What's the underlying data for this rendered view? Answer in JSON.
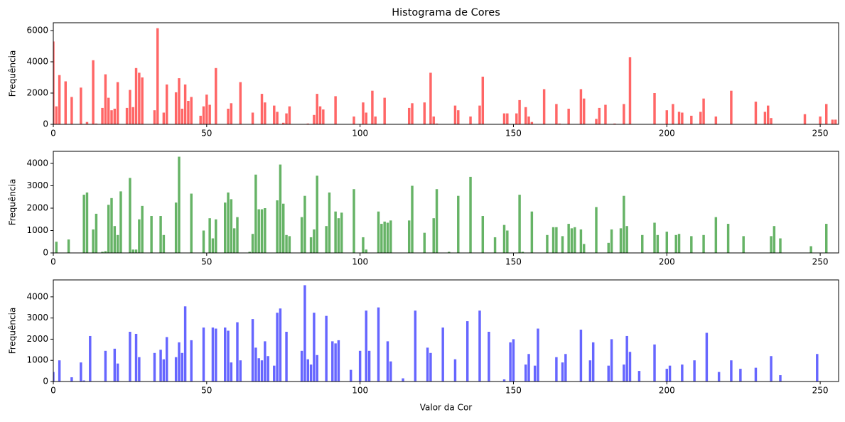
{
  "chart_data": [
    {
      "type": "bar",
      "title": "Histograma de Cores",
      "ylabel": "Frequência",
      "color": "#ff6666",
      "xlim": [
        0,
        256
      ],
      "xticks": [
        0,
        50,
        100,
        150,
        200,
        250
      ],
      "ylim": [
        0,
        6500
      ],
      "yticks": [
        0,
        2000,
        4000,
        6000
      ],
      "x": [
        0,
        1,
        2,
        4,
        6,
        9,
        11,
        13,
        14,
        16,
        17,
        18,
        19,
        20,
        21,
        24,
        25,
        26,
        27,
        28,
        29,
        33,
        34,
        36,
        37,
        40,
        41,
        42,
        43,
        44,
        45,
        48,
        49,
        50,
        51,
        53,
        57,
        58,
        61,
        65,
        68,
        69,
        72,
        73,
        75,
        76,
        77,
        83,
        85,
        86,
        87,
        88,
        92,
        98,
        101,
        102,
        104,
        105,
        108,
        116,
        117,
        121,
        123,
        124,
        125,
        131,
        132,
        136,
        139,
        140,
        147,
        148,
        151,
        152,
        154,
        155,
        156,
        160,
        164,
        165,
        168,
        172,
        173,
        177,
        178,
        180,
        183,
        186,
        188,
        196,
        200,
        202,
        204,
        205,
        208,
        211,
        212,
        216,
        221,
        229,
        232,
        233,
        234,
        245,
        250,
        252,
        254,
        255
      ],
      "values": [
        5300,
        1150,
        3150,
        2750,
        1750,
        2350,
        150,
        4100,
        50,
        1050,
        3200,
        1700,
        900,
        1000,
        2700,
        1050,
        2200,
        1100,
        3600,
        3300,
        3000,
        900,
        6150,
        750,
        2550,
        2050,
        2950,
        1000,
        2550,
        1500,
        1750,
        550,
        1150,
        1900,
        1250,
        3600,
        1000,
        1350,
        2700,
        750,
        1950,
        1400,
        1200,
        800,
        100,
        700,
        1150,
        50,
        600,
        1950,
        1150,
        950,
        1800,
        500,
        1400,
        750,
        2150,
        500,
        1700,
        1050,
        1350,
        1400,
        3300,
        500,
        50,
        1200,
        900,
        500,
        1200,
        3050,
        700,
        700,
        700,
        1550,
        1100,
        500,
        150,
        2250,
        1300,
        50,
        1000,
        2250,
        1650,
        350,
        1050,
        1250,
        50,
        1300,
        4300,
        2000,
        900,
        1300,
        800,
        750,
        550,
        800,
        1650,
        500,
        2150,
        1450,
        800,
        1200,
        400,
        650,
        500,
        1300,
        300,
        300
      ]
    },
    {
      "type": "bar",
      "ylabel": "Frequência",
      "color": "#66b366",
      "xlim": [
        0,
        256
      ],
      "xticks": [
        0,
        50,
        100,
        150,
        200,
        250
      ],
      "ylim": [
        0,
        4540
      ],
      "yticks": [
        0,
        1000,
        2000,
        3000,
        4000
      ],
      "x": [
        1,
        5,
        10,
        11,
        13,
        14,
        16,
        17,
        18,
        19,
        20,
        21,
        22,
        25,
        26,
        27,
        28,
        29,
        32,
        35,
        36,
        40,
        41,
        45,
        49,
        51,
        52,
        53,
        56,
        57,
        58,
        59,
        60,
        64,
        65,
        66,
        67,
        68,
        69,
        73,
        74,
        75,
        76,
        77,
        81,
        82,
        84,
        85,
        86,
        89,
        90,
        92,
        93,
        94,
        98,
        101,
        102,
        106,
        107,
        108,
        109,
        110,
        116,
        117,
        121,
        124,
        125,
        129,
        132,
        136,
        140,
        144,
        147,
        148,
        152,
        153,
        156,
        161,
        163,
        164,
        166,
        168,
        169,
        170,
        172,
        173,
        177,
        181,
        182,
        185,
        186,
        187,
        192,
        196,
        197,
        200,
        203,
        204,
        208,
        212,
        216,
        220,
        225,
        234,
        235,
        237,
        247,
        252
      ],
      "values": [
        500,
        600,
        2600,
        2700,
        1050,
        1750,
        50,
        80,
        2150,
        2450,
        1200,
        800,
        2750,
        3350,
        150,
        150,
        1500,
        2100,
        1650,
        1650,
        800,
        2250,
        4300,
        2650,
        1000,
        1550,
        650,
        1500,
        2250,
        2700,
        2400,
        1100,
        1600,
        50,
        850,
        3500,
        1950,
        1950,
        2000,
        2350,
        3950,
        2200,
        800,
        750,
        1600,
        2550,
        700,
        1050,
        3450,
        1200,
        2700,
        1850,
        1550,
        1800,
        2850,
        700,
        150,
        1850,
        1300,
        1400,
        1350,
        1450,
        1450,
        3000,
        900,
        1550,
        2850,
        50,
        2550,
        3400,
        1650,
        700,
        1250,
        1000,
        2600,
        50,
        1850,
        800,
        1150,
        1150,
        750,
        1300,
        1100,
        1150,
        1050,
        400,
        2050,
        450,
        1050,
        1100,
        2550,
        1200,
        800,
        1350,
        800,
        950,
        800,
        850,
        750,
        800,
        1600,
        1300,
        750,
        750,
        1200,
        650,
        300,
        1300
      ]
    },
    {
      "type": "bar",
      "ylabel": "Frequência",
      "xlabel": "Valor da Cor",
      "color": "#6666ff",
      "xlim": [
        0,
        256
      ],
      "xticks": [
        0,
        50,
        100,
        150,
        200,
        250
      ],
      "ylim": [
        0,
        4800
      ],
      "yticks": [
        0,
        1000,
        2000,
        3000,
        4000
      ],
      "x": [
        0,
        2,
        6,
        9,
        10,
        12,
        17,
        20,
        21,
        25,
        27,
        28,
        33,
        35,
        36,
        37,
        40,
        41,
        42,
        43,
        45,
        49,
        52,
        53,
        56,
        57,
        58,
        60,
        61,
        65,
        66,
        67,
        68,
        69,
        70,
        72,
        73,
        74,
        76,
        81,
        82,
        83,
        84,
        85,
        86,
        89,
        91,
        92,
        93,
        97,
        100,
        102,
        103,
        106,
        109,
        110,
        114,
        118,
        122,
        123,
        127,
        131,
        135,
        139,
        142,
        147,
        149,
        150,
        154,
        155,
        157,
        158,
        164,
        166,
        167,
        172,
        175,
        176,
        181,
        182,
        186,
        187,
        188,
        191,
        196,
        200,
        201,
        205,
        209,
        213,
        217,
        221,
        224,
        229,
        234,
        237,
        249
      ],
      "values": [
        450,
        1000,
        200,
        900,
        50,
        2150,
        1450,
        1550,
        850,
        2350,
        2250,
        1150,
        1350,
        1500,
        1050,
        2100,
        1150,
        1850,
        1350,
        3550,
        1950,
        2550,
        2550,
        2500,
        2550,
        2400,
        900,
        2800,
        1000,
        2950,
        1600,
        1100,
        1000,
        1900,
        1200,
        750,
        3250,
        3450,
        2350,
        1450,
        4550,
        1050,
        800,
        3250,
        1250,
        3100,
        1900,
        1800,
        1950,
        550,
        1450,
        3350,
        1450,
        3500,
        1900,
        950,
        150,
        3350,
        1600,
        1350,
        2550,
        1050,
        2850,
        3350,
        2350,
        100,
        1850,
        2000,
        800,
        1300,
        750,
        2500,
        1150,
        900,
        1300,
        2450,
        1000,
        1850,
        750,
        2000,
        800,
        2150,
        1400,
        500,
        1750,
        600,
        750,
        800,
        1000,
        2300,
        450,
        1000,
        600,
        650,
        1200,
        300,
        1300
      ]
    }
  ]
}
